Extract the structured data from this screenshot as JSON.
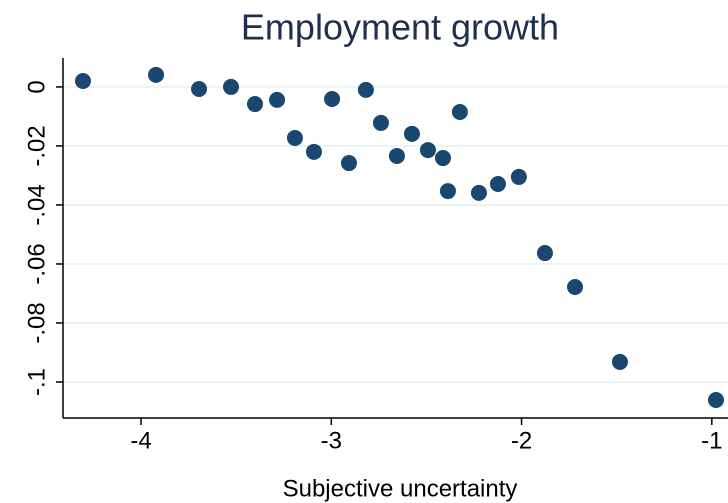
{
  "chart_data": {
    "type": "scatter",
    "title": "Employment growth",
    "x_label": "Subjective uncertainty",
    "color": "#1a476f",
    "grid": true,
    "x": [
      -4.305,
      -3.921,
      -3.695,
      -3.527,
      -3.401,
      -3.285,
      -3.191,
      -3.091,
      -2.996,
      -2.907,
      -2.818,
      -2.739,
      -2.655,
      -2.576,
      -2.492,
      -2.413,
      -2.324,
      -2.387,
      -2.224,
      -2.124,
      -2.014,
      -1.877,
      -1.719,
      -1.483,
      -0.978
    ],
    "values": [
      0.002,
      0.0041,
      -0.0007,
      0,
      -0.0058,
      -0.0044,
      -0.0173,
      -0.022,
      -0.0041,
      -0.0258,
      -0.001,
      -0.0122,
      -0.0234,
      -0.0159,
      -0.0214,
      -0.0241,
      -0.0085,
      -0.0353,
      -0.0359,
      -0.0329,
      -0.0305,
      -0.0563,
      -0.0678,
      -0.0932,
      -0.1061
    ],
    "xlim": [
      -4.41,
      -0.915
    ],
    "ylim": [
      -0.1122,
      0.0098
    ],
    "xticks": [
      -4,
      -3,
      -2,
      -1
    ],
    "yticks": [
      0,
      {
        "value": -0.02,
        "label": "-.02"
      },
      {
        "value": -0.04,
        "label": "-.04"
      },
      {
        "value": -0.06,
        "label": "-.06"
      },
      {
        "value": -0.08,
        "label": "-.08"
      },
      {
        "value": -0.1,
        "label": "-.1"
      }
    ]
  }
}
